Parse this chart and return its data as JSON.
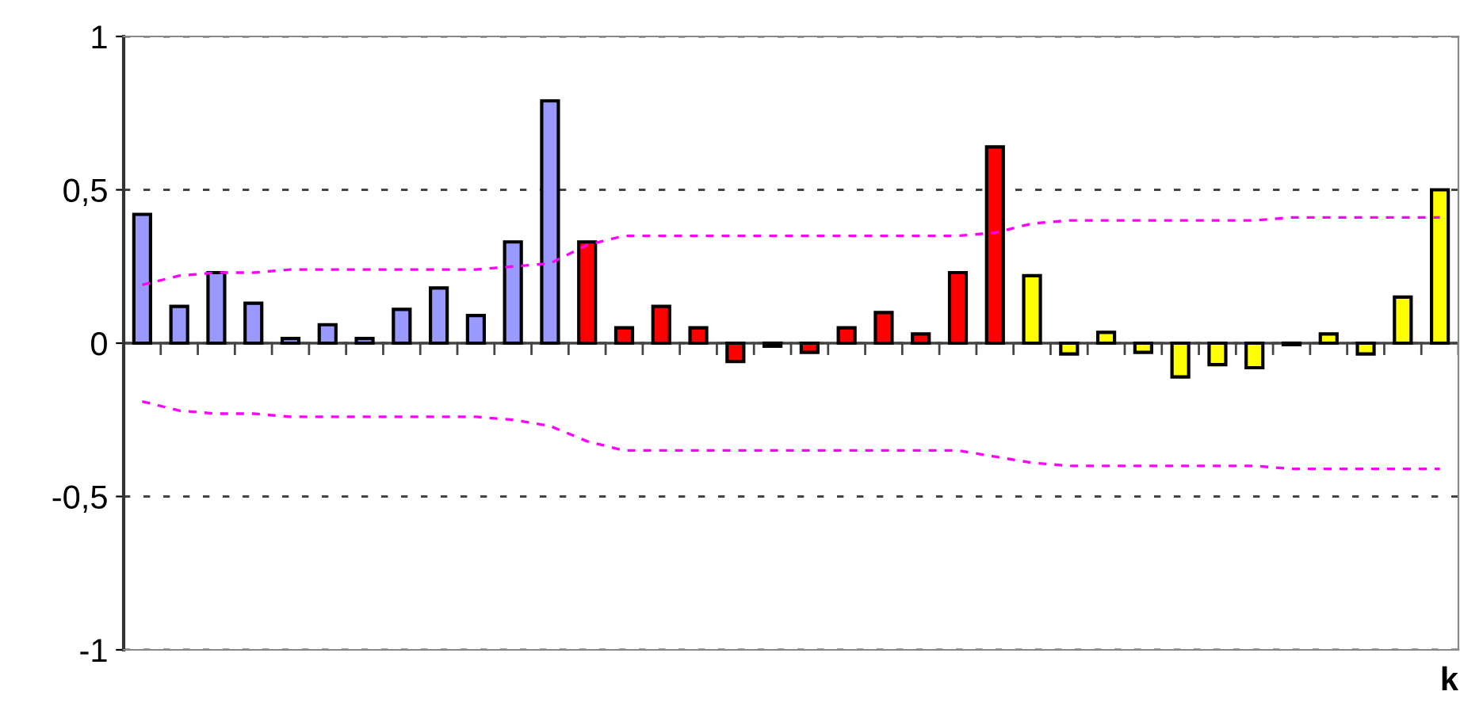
{
  "chart_data": {
    "type": "bar",
    "xlabel": "k",
    "categories": [
      null,
      null,
      null,
      null,
      null,
      null,
      null,
      null,
      null,
      null,
      null,
      null,
      null,
      null,
      null,
      null,
      null,
      null,
      null,
      null,
      null,
      null,
      null,
      null,
      null,
      null,
      null,
      null,
      null,
      null,
      null,
      null,
      null,
      null,
      null,
      null
    ],
    "series": [
      {
        "values": [
          0.42,
          0.12,
          0.23,
          0.13,
          0.015,
          0.06,
          0.015,
          0.11,
          0.18,
          0.09,
          0.33,
          0.79,
          0.33,
          0.05,
          0.12,
          0.05,
          -0.06,
          -0.01,
          -0.03,
          0.05,
          0.1,
          0.03,
          0.23,
          0.64,
          0.22,
          -0.035,
          0.035,
          -0.03,
          -0.11,
          -0.07,
          -0.08,
          -0.005,
          0.03,
          -0.035,
          0.15,
          0.5
        ],
        "colors": [
          "#9999ff",
          "#9999ff",
          "#9999ff",
          "#9999ff",
          "#9999ff",
          "#9999ff",
          "#9999ff",
          "#9999ff",
          "#9999ff",
          "#9999ff",
          "#9999ff",
          "#9999ff",
          "#ff0000",
          "#ff0000",
          "#ff0000",
          "#ff0000",
          "#ff0000",
          "#ff0000",
          "#ff0000",
          "#ff0000",
          "#ff0000",
          "#ff0000",
          "#ff0000",
          "#ff0000",
          "#ffff00",
          "#ffff00",
          "#ffff00",
          "#ffff00",
          "#ffff00",
          "#ffff00",
          "#ffff00",
          "#ffff00",
          "#ffff00",
          "#ffff00",
          "#ffff00",
          "#ffff00"
        ]
      },
      {
        "type": "line",
        "color": "#ff00ff",
        "line_style": "dashed",
        "values": [
          0.19,
          0.22,
          0.23,
          0.23,
          0.24,
          0.24,
          0.24,
          0.24,
          0.24,
          0.24,
          0.25,
          0.26,
          0.32,
          0.35,
          0.35,
          0.35,
          0.35,
          0.35,
          0.35,
          0.35,
          0.35,
          0.35,
          0.35,
          0.36,
          0.39,
          0.4,
          0.4,
          0.4,
          0.4,
          0.4,
          0.4,
          0.41,
          0.41,
          0.41,
          0.41,
          0.41
        ]
      },
      {
        "type": "line",
        "color": "#ff00ff",
        "line_style": "dashed",
        "values": [
          -0.19,
          -0.22,
          -0.23,
          -0.23,
          -0.24,
          -0.24,
          -0.24,
          -0.24,
          -0.24,
          -0.24,
          -0.25,
          -0.27,
          -0.32,
          -0.35,
          -0.35,
          -0.35,
          -0.35,
          -0.35,
          -0.35,
          -0.35,
          -0.35,
          -0.35,
          -0.35,
          -0.37,
          -0.39,
          -0.4,
          -0.4,
          -0.4,
          -0.4,
          -0.4,
          -0.4,
          -0.41,
          -0.41,
          -0.41,
          -0.41,
          -0.41
        ]
      }
    ],
    "ylim": [
      -1,
      1
    ],
    "yticks": [
      {
        "value": -1,
        "label": "-1"
      },
      {
        "value": -0.5,
        "label": "-0,5"
      },
      {
        "value": 0,
        "label": "0"
      },
      {
        "value": 0.5,
        "label": "0,5"
      },
      {
        "value": 1,
        "label": "1"
      }
    ],
    "grid": "y",
    "legend": false
  }
}
